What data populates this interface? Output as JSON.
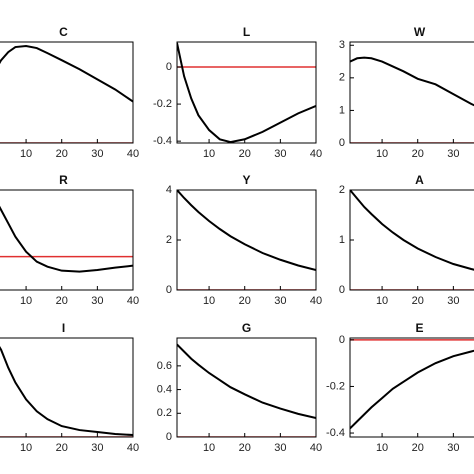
{
  "chart_data": [
    {
      "type": "line",
      "title": "C",
      "x": [
        1,
        3,
        5,
        7,
        10,
        13,
        16,
        20,
        25,
        30,
        35,
        40
      ],
      "series": [
        {
          "color": "#000000",
          "values": [
            0.7,
            0.82,
            0.9,
            0.95,
            0.96,
            0.94,
            0.89,
            0.82,
            0.73,
            0.63,
            0.53,
            0.41
          ]
        },
        {
          "color": "#e03030",
          "values": [
            0,
            0,
            0,
            0,
            0,
            0,
            0,
            0,
            0,
            0,
            0,
            0
          ]
        }
      ],
      "xlim": [
        1,
        40
      ],
      "ylim": [
        0,
        1
      ],
      "xticks": [
        10,
        20,
        30,
        40
      ]
    },
    {
      "type": "line",
      "title": "L",
      "x": [
        1,
        3,
        5,
        7,
        10,
        13,
        16,
        20,
        25,
        30,
        35,
        40
      ],
      "series": [
        {
          "color": "#000000",
          "values": [
            0.13,
            -0.05,
            -0.17,
            -0.26,
            -0.34,
            -0.39,
            -0.405,
            -0.39,
            -0.35,
            -0.3,
            -0.25,
            -0.21
          ]
        },
        {
          "color": "#e03030",
          "values": [
            0,
            0,
            0,
            0,
            0,
            0,
            0,
            0,
            0,
            0,
            0,
            0
          ]
        }
      ],
      "xlim": [
        1,
        40
      ],
      "ylim": [
        -0.41,
        0.135
      ],
      "xticks": [
        10,
        20,
        30,
        40
      ],
      "yticks": [
        -0.4,
        -0.2,
        0
      ]
    },
    {
      "type": "line",
      "title": "W",
      "x": [
        1,
        3,
        5,
        7,
        10,
        13,
        16,
        20,
        25,
        30,
        35,
        40
      ],
      "series": [
        {
          "color": "#000000",
          "values": [
            2.5,
            2.6,
            2.62,
            2.6,
            2.5,
            2.35,
            2.2,
            1.97,
            1.8,
            1.5,
            1.2,
            0.95
          ]
        },
        {
          "color": "#e03030",
          "values": [
            0,
            0,
            0,
            0,
            0,
            0,
            0,
            0,
            0,
            0,
            0,
            0
          ]
        }
      ],
      "xlim": [
        1,
        40
      ],
      "ylim": [
        0,
        3.1
      ],
      "xticks": [
        10,
        20,
        30
      ],
      "yticks": [
        0,
        1,
        2,
        3
      ]
    },
    {
      "type": "line",
      "title": "R",
      "x": [
        1,
        3,
        5,
        7,
        10,
        13,
        16,
        20,
        25,
        30,
        35,
        40
      ],
      "series": [
        {
          "color": "#000000",
          "values": [
            1.8,
            1.4,
            1.0,
            0.6,
            0.15,
            -0.15,
            -0.3,
            -0.42,
            -0.45,
            -0.4,
            -0.33,
            -0.27
          ]
        },
        {
          "color": "#e03030",
          "values": [
            0,
            0,
            0,
            0,
            0,
            0,
            0,
            0,
            0,
            0,
            0,
            0
          ]
        }
      ],
      "xlim": [
        1,
        40
      ],
      "ylim": [
        -1,
        2
      ],
      "xticks": [
        10,
        20,
        30,
        40
      ]
    },
    {
      "type": "line",
      "title": "Y",
      "x": [
        1,
        3,
        5,
        7,
        10,
        13,
        16,
        20,
        25,
        30,
        35,
        40
      ],
      "series": [
        {
          "color": "#000000",
          "values": [
            4,
            3.68,
            3.39,
            3.12,
            2.76,
            2.44,
            2.15,
            1.83,
            1.48,
            1.21,
            0.98,
            0.8
          ]
        },
        {
          "color": "#e03030",
          "values": [
            0,
            0,
            0,
            0,
            0,
            0,
            0,
            0,
            0,
            0,
            0,
            0
          ]
        }
      ],
      "xlim": [
        1,
        40
      ],
      "ylim": [
        0,
        4
      ],
      "xticks": [
        10,
        20,
        30,
        40
      ],
      "yticks": [
        0,
        2,
        4
      ]
    },
    {
      "type": "line",
      "title": "A",
      "x": [
        1,
        3,
        5,
        7,
        10,
        13,
        16,
        20,
        25,
        30,
        35,
        40
      ],
      "series": [
        {
          "color": "#000000",
          "values": [
            2,
            1.83,
            1.66,
            1.52,
            1.32,
            1.15,
            1.0,
            0.83,
            0.66,
            0.52,
            0.42,
            0.33
          ]
        },
        {
          "color": "#e03030",
          "values": [
            0,
            0,
            0,
            0,
            0,
            0,
            0,
            0,
            0,
            0,
            0,
            0
          ]
        }
      ],
      "xlim": [
        1,
        40
      ],
      "ylim": [
        0,
        2
      ],
      "xticks": [
        10,
        20,
        30
      ],
      "yticks": [
        0,
        1,
        2
      ]
    },
    {
      "type": "line",
      "title": "I",
      "x": [
        1,
        3,
        5,
        7,
        10,
        13,
        16,
        20,
        25,
        30,
        35,
        40
      ],
      "series": [
        {
          "color": "#000000",
          "values": [
            1.0,
            0.88,
            0.7,
            0.55,
            0.38,
            0.26,
            0.18,
            0.11,
            0.07,
            0.05,
            0.03,
            0.02
          ]
        },
        {
          "color": "#e03030",
          "values": [
            0,
            0,
            0,
            0,
            0,
            0,
            0,
            0,
            0,
            0,
            0,
            0
          ]
        }
      ],
      "xlim": [
        1,
        40
      ],
      "ylim": [
        0,
        1
      ],
      "xticks": [
        10,
        20,
        30,
        40
      ]
    },
    {
      "type": "line",
      "title": "G",
      "x": [
        1,
        3,
        5,
        7,
        10,
        13,
        16,
        20,
        25,
        30,
        35,
        40
      ],
      "series": [
        {
          "color": "#000000",
          "values": [
            0.78,
            0.72,
            0.66,
            0.61,
            0.54,
            0.48,
            0.42,
            0.36,
            0.29,
            0.24,
            0.195,
            0.16
          ]
        },
        {
          "color": "#e03030",
          "values": [
            0,
            0,
            0,
            0,
            0,
            0,
            0,
            0,
            0,
            0,
            0,
            0
          ]
        }
      ],
      "xlim": [
        1,
        40
      ],
      "ylim": [
        0,
        0.835
      ],
      "xticks": [
        10,
        20,
        30,
        40
      ],
      "yticks": [
        0,
        0.2,
        0.4,
        0.6
      ]
    },
    {
      "type": "line",
      "title": "E",
      "x": [
        1,
        3,
        5,
        7,
        10,
        13,
        16,
        20,
        25,
        30,
        35,
        40
      ],
      "series": [
        {
          "color": "#000000",
          "values": [
            -0.38,
            -0.35,
            -0.32,
            -0.29,
            -0.25,
            -0.21,
            -0.18,
            -0.14,
            -0.1,
            -0.07,
            -0.05,
            -0.03
          ]
        },
        {
          "color": "#e03030",
          "values": [
            0,
            0,
            0,
            0,
            0,
            0,
            0,
            0,
            0,
            0,
            0,
            0
          ]
        }
      ],
      "xlim": [
        1,
        40
      ],
      "ylim": [
        -0.417,
        0.008
      ],
      "xticks": [
        10,
        20,
        30
      ],
      "yticks": [
        -0.4,
        -0.2,
        0
      ]
    }
  ]
}
